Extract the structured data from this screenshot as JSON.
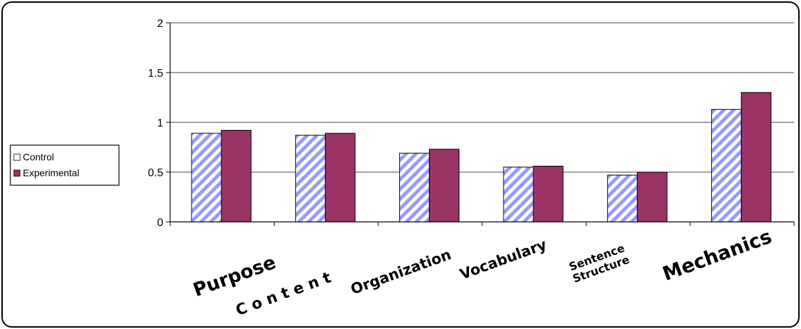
{
  "chart_data": {
    "type": "bar",
    "title": "",
    "xlabel": "",
    "ylabel": "",
    "ylim": [
      0,
      2
    ],
    "yticks": [
      "0",
      "0.5",
      "1",
      "1.5",
      "2"
    ],
    "grid": true,
    "legend_position": "left",
    "categories": [
      "Purpose",
      "C o n t e n t",
      "Organization",
      "Vocabulary",
      "Sentence Structure",
      "Mechanics"
    ],
    "series": [
      {
        "name": "Control",
        "values": [
          0.89,
          0.87,
          0.69,
          0.55,
          0.47,
          1.13
        ],
        "color": "#9999ff",
        "pattern": "diagonal-stripes"
      },
      {
        "name": "Experimental",
        "values": [
          0.92,
          0.89,
          0.73,
          0.56,
          0.5,
          1.3
        ],
        "color": "#993366",
        "pattern": "solid"
      }
    ]
  }
}
